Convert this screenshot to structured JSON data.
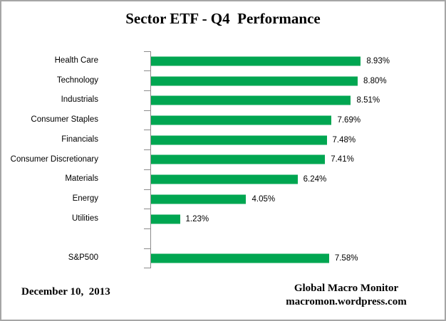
{
  "title": "Sector ETF - Q4  Performance",
  "footer": {
    "date": "December 10,  2013",
    "credit_line1": "Global Macro Monitor",
    "credit_line2": "macromon.wordpress.com"
  },
  "colors": {
    "bar": "#00A651",
    "axis": "#8C8C8C",
    "border": "#A6A6A6",
    "text": "#000000",
    "background": "#FFFFFF"
  },
  "chart_data": {
    "type": "bar",
    "orientation": "horizontal",
    "title": "Sector ETF - Q4  Performance",
    "categories": [
      "Health Care",
      "Technology",
      "Industrials",
      "Consumer Staples",
      "Financials",
      "Consumer Discretionary",
      "Materials",
      "Energy",
      "Utilities",
      "",
      "S&P500"
    ],
    "values": [
      8.93,
      8.8,
      8.51,
      7.69,
      7.48,
      7.41,
      6.24,
      4.05,
      1.23,
      null,
      7.58
    ],
    "value_labels": [
      "8.93%",
      "8.80%",
      "8.51%",
      "7.69%",
      "7.48%",
      "7.41%",
      "6.24%",
      "4.05%",
      "1.23%",
      "",
      "7.58%"
    ],
    "xlabel": "",
    "ylabel": "",
    "xlim": [
      0,
      12.5
    ],
    "grid": false,
    "legend": false,
    "bar_color": "#00A651"
  }
}
